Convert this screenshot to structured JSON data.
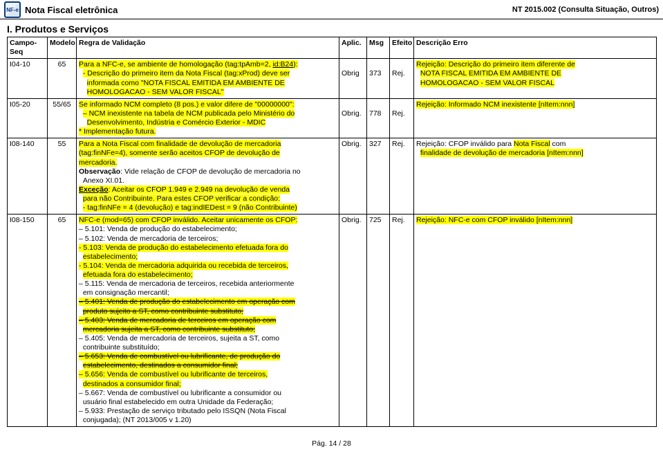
{
  "header": {
    "logo_text": "NF-e",
    "title": "Nota Fiscal eletrônica",
    "right": "NT 2015.002 (Consulta Situação, Outros)"
  },
  "section": "I. Produtos e Serviços",
  "columns": [
    "Campo-Seq",
    "Modelo",
    "Regra de Validação",
    "Aplic.",
    "Msg",
    "Efeito",
    "Descrição Erro"
  ],
  "rows": {
    "r0": {
      "campo": "I04-10",
      "modelo": "65",
      "aplic": "Obrig",
      "msg": "373",
      "efeito": "Rej.",
      "regra_l1a": "Para a NFC-e, se ambiente de homologação (tag:tpAmb=2, ",
      "regra_l1b": "id:B24",
      "regra_l1c": "):",
      "regra_l2a": "- Descrição do primeiro item da Nota Fiscal (tag:xProd) deve ser",
      "regra_l2b": "informada como \"NOTA FISCAL EMITIDA EM AMBIENTE DE",
      "regra_l2c": "HOMOLOGACAO - SEM VALOR FISCAL\"",
      "erro_l1": "Rejeição: Descrição do primeiro item diferente de",
      "erro_l2": "NOTA FISCAL EMITIDA EM AMBIENTE DE",
      "erro_l3": "HOMOLOGACAO - SEM VALOR FISCAL"
    },
    "r1": {
      "campo": "I05-20",
      "modelo": "55/65",
      "aplic": "Obrig.",
      "msg": "778",
      "efeito": "Rej.",
      "regra_l1a": "Se informado NCM completo (8 pos.) e valor difere de \"00000000\":",
      "regra_l2a": "– NCM inexistente na tabela de NCM publicada pelo Ministério do",
      "regra_l2b": "Desenvolvimento, Indústria e Comércio Exterior - MDIC",
      "regra_l3": "* Implementação futura.",
      "erro_l1": "Rejeição: Informado NCM inexistente [nItem:nnn]"
    },
    "r2": {
      "campo": "I08-140",
      "modelo": "55",
      "aplic": "Obrig.",
      "msg": "327",
      "efeito": "Rej.",
      "regra_l1a": "Para a Nota Fiscal com finalidade de devolução de mercadoria",
      "regra_l1b": "(tag:finNFe=4), somente serão aceitos CFOP de devolução de",
      "regra_l1c": "mercadoria.",
      "regra_obs1": "Observação",
      "regra_obs2": ": Vide relação de CFOP de devolução de mercadoria no",
      "regra_obs3": "Anexo XI.01.",
      "regra_exc1": "Exceção",
      "regra_exc2": ": Aceitar os CFOP 1.949 e 2.949 na devolução de venda",
      "regra_exc3": "para não Contribuinte. Para estes CFOP verificar a condição:",
      "regra_exc4": "- tag:finNFe = 4 (devolução) e tag:indIEDest = 9 (não Contribuinte)",
      "erro_l1a": "Rejeição: CFOP inválido para ",
      "erro_l1b": "Nota Fiscal",
      "erro_l1c": " com",
      "erro_l2": "finalidade de devolução de mercadoria [nItem:nnn]"
    },
    "r3": {
      "campo": "I08-150",
      "modelo": "65",
      "aplic": "Obrig.",
      "msg": "725",
      "efeito": "Rej.",
      "regra_l1": "NFC-e (mod=65) com CFOP inválido. Aceitar unicamente os CFOP:",
      "regra_i01": "– 5.101: Venda de produção do estabelecimento;",
      "regra_i02": "– 5.102: Venda de mercadoria de terceiros;",
      "regra_i03a": "- 5.103: Venda de produção do estabelecimento efetuada fora do",
      "regra_i03b": "estabelecimento;",
      "regra_i04a": "- 5.104: Venda de mercadoria adquirida ou recebida de terceiros,",
      "regra_i04b": "efetuada fora do estabelecimento;",
      "regra_i05a": "– 5.115: Venda de mercadoria de terceiros, recebida anteriormente",
      "regra_i05b": "em consignação mercantil;",
      "regra_i06a": "– 5.401: Venda de produção do estabelecimento em operação com",
      "regra_i06b": "produto sujeito a ST, como contribuinte substituto;",
      "regra_i07a": "– 5.403: Venda de mercadoria de terceiros em operação com",
      "regra_i07b": "mercadoria sujeita a ST, como contribuinte substituto;",
      "regra_i08a": "– 5.405: Venda de mercadoria de terceiros, sujeita a ST, como",
      "regra_i08b": "contribuinte substituído;",
      "regra_i09a": "– 5.653: Venda de combustível ou lubrificante, de produção do",
      "regra_i09b": "estabelecimento, destinados a consumidor final;",
      "regra_i10a": "– 5.656: Venda de combustível ou lubrificante de terceiros,",
      "regra_i10b": "destinados a consumidor final;",
      "regra_i11a": "– 5.667: Venda de combustível ou lubrificante a consumidor ou",
      "regra_i11b": "usuário final estabelecido em outra Unidade da Federação;",
      "regra_i12a": "– 5.933: Prestação de serviço tributado pelo ISSQN (Nota Fiscal",
      "regra_i12b": "conjugada); (NT 2013/005 v 1.20)",
      "erro_l1": "Rejeição: NFC-e com CFOP inválido [nItem:nnn]"
    }
  },
  "footer": "Pág. 14 / 28"
}
